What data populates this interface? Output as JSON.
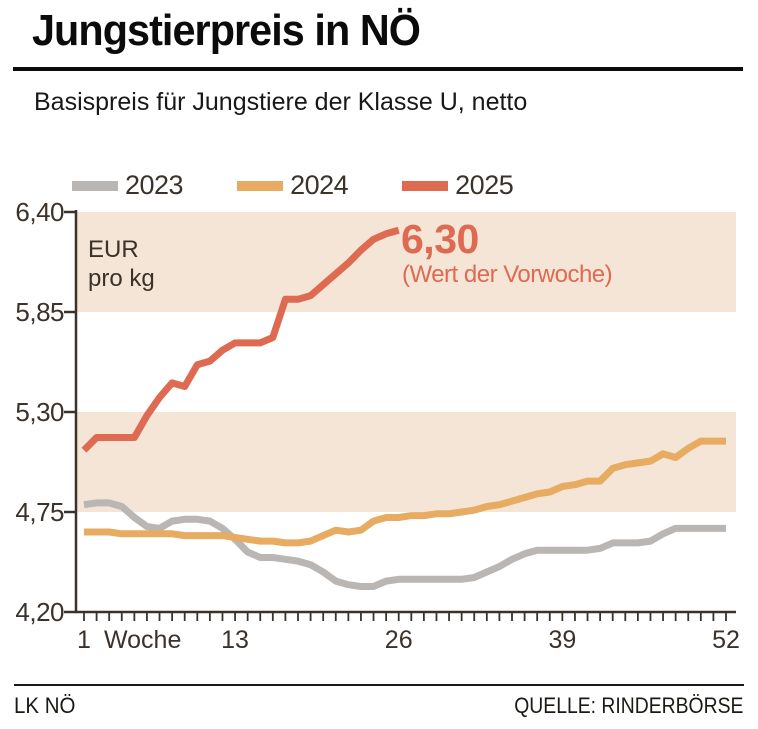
{
  "header": {
    "title": "Jungstierpreis in NÖ",
    "subtitle": "Basispreis für Jungstiere der Klasse U, netto"
  },
  "legend": {
    "items": [
      {
        "label": "2023",
        "color": "#b9b6b4"
      },
      {
        "label": "2024",
        "color": "#e7ab62"
      },
      {
        "label": "2025",
        "color": "#de6a52"
      }
    ]
  },
  "chart_data": {
    "type": "line",
    "unit_label": "EUR\npro kg",
    "axis_color": "#3b332b",
    "bands": {
      "color": "#f4e5d6",
      "intervals": [
        [
          5.85,
          6.4
        ],
        [
          4.75,
          5.3
        ]
      ]
    },
    "x_axis": {
      "label": "Woche",
      "tick_labels": [
        "1",
        "13",
        "26",
        "39",
        "52"
      ],
      "tick_weeks": [
        1,
        13,
        26,
        39,
        52
      ],
      "range": [
        1,
        52
      ],
      "weekly_minor_ticks": true
    },
    "y_axis": {
      "tick_labels": [
        "6,40",
        "5,85",
        "5,30",
        "4,75",
        "4,20"
      ],
      "tick_values": [
        6.4,
        5.85,
        5.3,
        4.75,
        4.2
      ],
      "range": [
        4.2,
        6.4
      ]
    },
    "series": [
      {
        "name": "2023",
        "color": "#b9b6b4",
        "start_week": 1,
        "values": [
          4.79,
          4.8,
          4.8,
          4.78,
          4.72,
          4.67,
          4.66,
          4.7,
          4.71,
          4.71,
          4.7,
          4.66,
          4.6,
          4.53,
          4.5,
          4.5,
          4.49,
          4.48,
          4.46,
          4.42,
          4.37,
          4.35,
          4.34,
          4.34,
          4.37,
          4.38,
          4.38,
          4.38,
          4.38,
          4.38,
          4.38,
          4.39,
          4.42,
          4.45,
          4.49,
          4.52,
          4.54,
          4.54,
          4.54,
          4.54,
          4.54,
          4.55,
          4.58,
          4.58,
          4.58,
          4.59,
          4.63,
          4.66,
          4.66,
          4.66,
          4.66,
          4.66
        ]
      },
      {
        "name": "2024",
        "color": "#e7ab62",
        "start_week": 1,
        "values": [
          4.64,
          4.64,
          4.64,
          4.63,
          4.63,
          4.63,
          4.63,
          4.63,
          4.62,
          4.62,
          4.62,
          4.62,
          4.61,
          4.6,
          4.59,
          4.59,
          4.58,
          4.58,
          4.59,
          4.62,
          4.65,
          4.64,
          4.65,
          4.7,
          4.72,
          4.72,
          4.73,
          4.73,
          4.74,
          4.74,
          4.75,
          4.76,
          4.78,
          4.79,
          4.81,
          4.83,
          4.85,
          4.86,
          4.89,
          4.9,
          4.92,
          4.92,
          4.99,
          5.01,
          5.02,
          5.03,
          5.07,
          5.05,
          5.1,
          5.14,
          5.14,
          5.14
        ]
      },
      {
        "name": "2025",
        "color": "#de6a52",
        "start_week": 1,
        "values": [
          5.09,
          5.16,
          5.16,
          5.16,
          5.16,
          5.28,
          5.38,
          5.46,
          5.44,
          5.56,
          5.58,
          5.64,
          5.68,
          5.68,
          5.68,
          5.71,
          5.92,
          5.92,
          5.94,
          6.0,
          6.06,
          6.12,
          6.19,
          6.25,
          6.28,
          6.3
        ]
      }
    ],
    "annotation": {
      "value": "6,30",
      "note": "(Wert der Vorwoche)",
      "color": "#de6a52"
    }
  },
  "footer": {
    "left": "LK NÖ",
    "right": "QUELLE: RINDERBÖRSE"
  }
}
